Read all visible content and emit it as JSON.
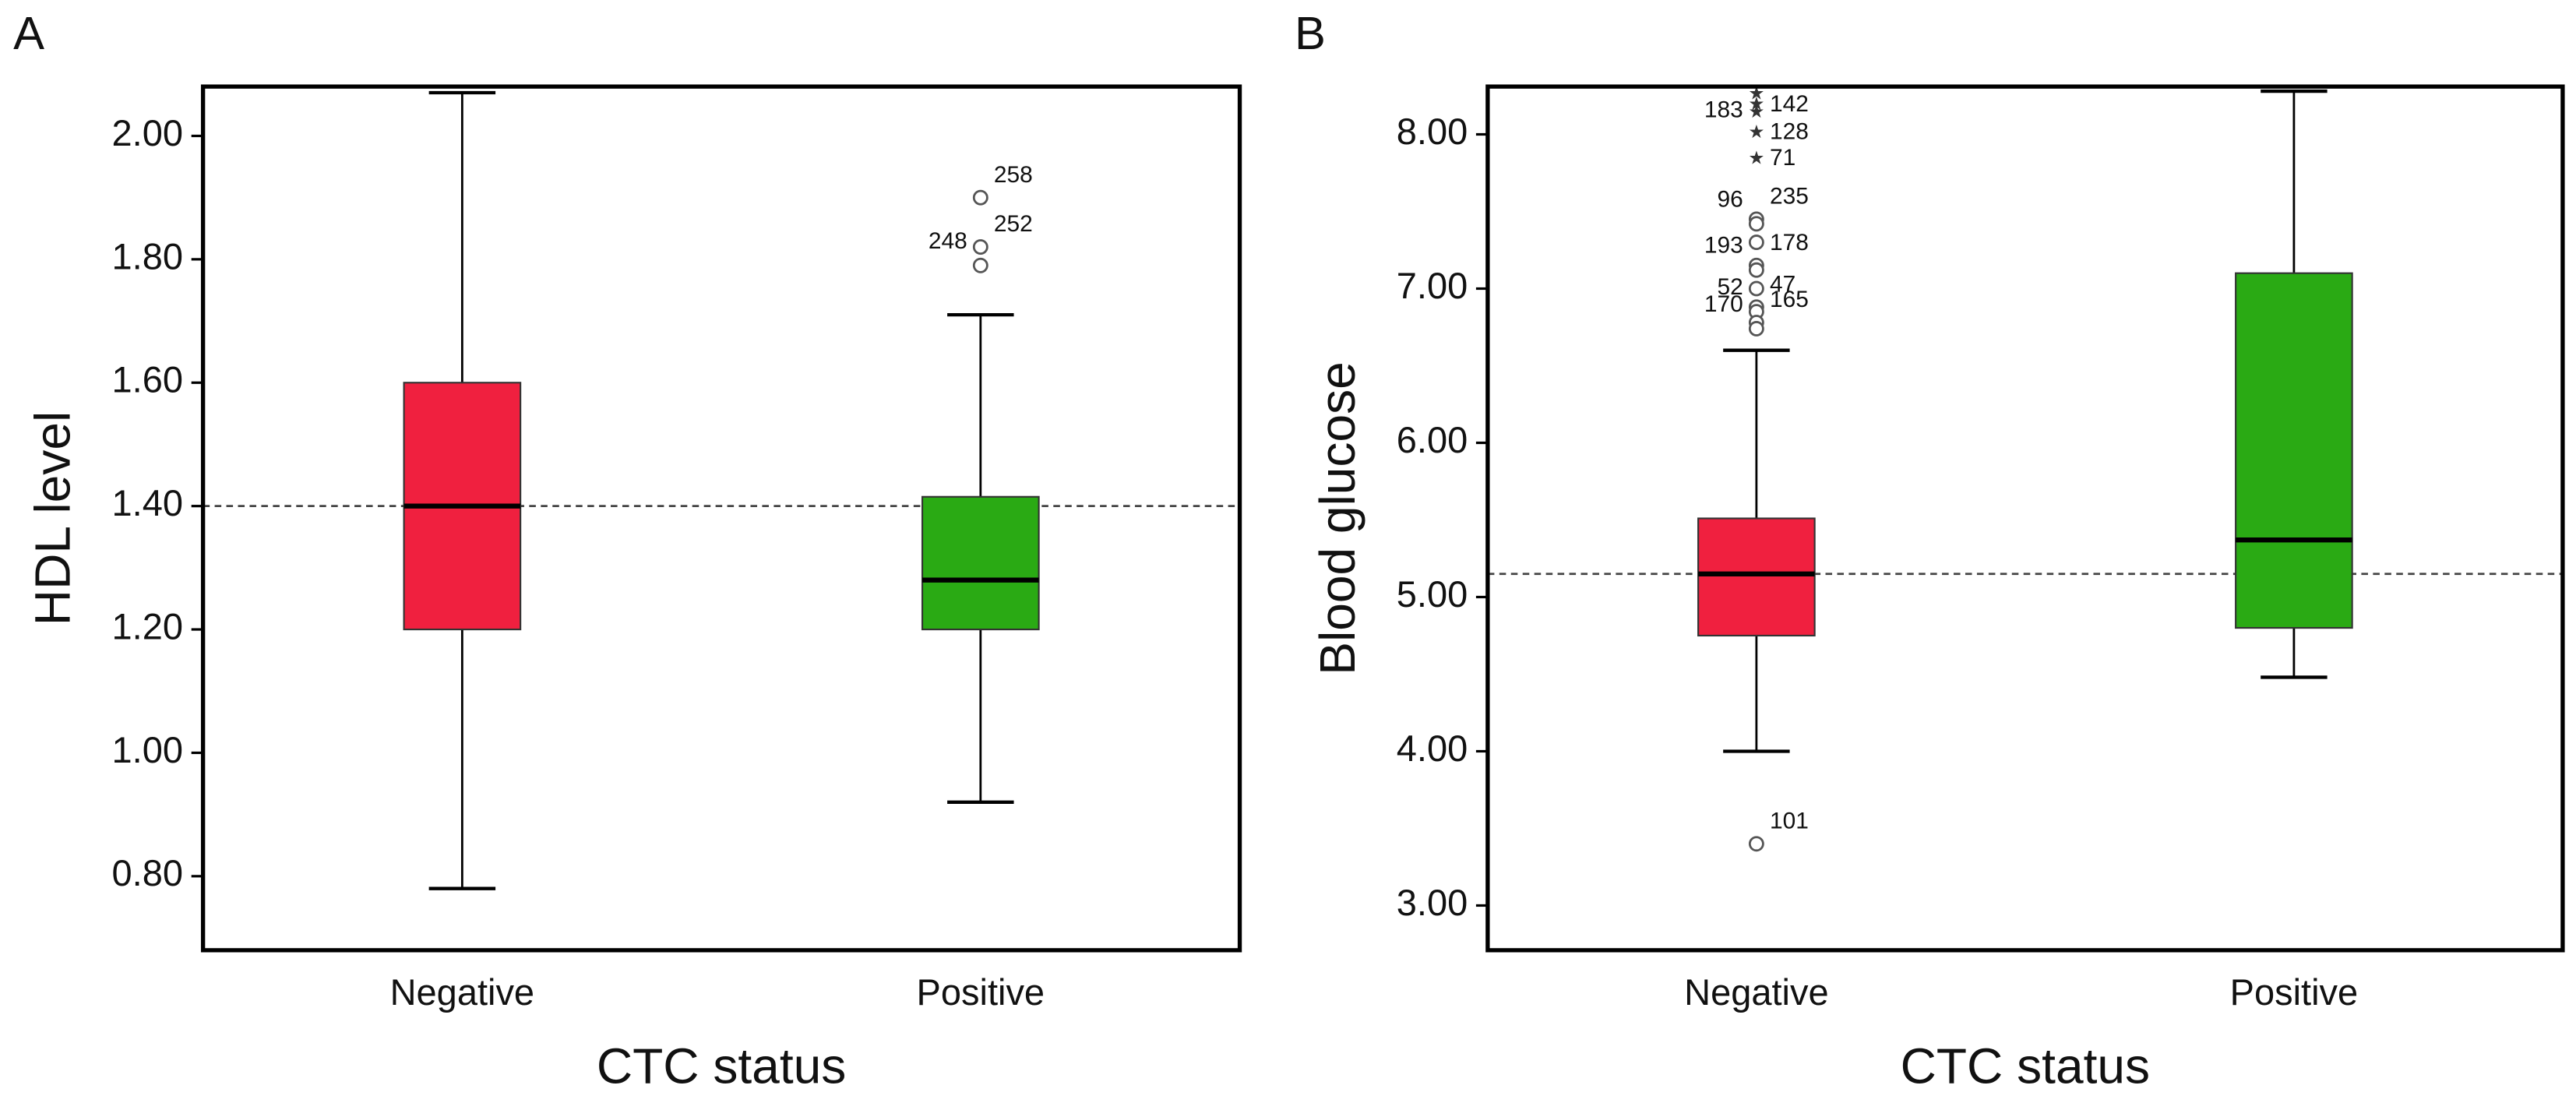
{
  "chart_data": [
    {
      "type": "box",
      "panel": "A",
      "ylabel": "HDL level",
      "xlabel": "CTC status",
      "categories": [
        "Negative",
        "Positive"
      ],
      "ylim": [
        0.68,
        2.08
      ],
      "yticks": [
        {
          "value": 0.8,
          "label": "0.80"
        },
        {
          "value": 1.0,
          "label": "1.00"
        },
        {
          "value": 1.2,
          "label": "1.20"
        },
        {
          "value": 1.4,
          "label": "1.40"
        },
        {
          "value": 1.6,
          "label": "1.60"
        },
        {
          "value": 1.8,
          "label": "1.80"
        },
        {
          "value": 2.0,
          "label": "2.00"
        }
      ],
      "reference_line": 1.4,
      "series": [
        {
          "name": "Negative",
          "color": "#f0203f",
          "min": 0.78,
          "q1": 1.2,
          "median": 1.4,
          "q3": 1.6,
          "max": 2.07,
          "outliers": [],
          "outlier_labels": [],
          "extremes": [],
          "extreme_labels": []
        },
        {
          "name": "Positive",
          "color": "#2aaa14",
          "min": 0.92,
          "q1": 1.2,
          "median": 1.28,
          "q3": 1.415,
          "max": 1.71,
          "outliers": [
            1.9,
            1.82,
            1.79
          ],
          "outlier_labels": [
            "258",
            "252",
            "248"
          ],
          "extremes": [],
          "extreme_labels": []
        }
      ]
    },
    {
      "type": "box",
      "panel": "B",
      "ylabel": "Blood glucose",
      "xlabel": "CTC status",
      "categories": [
        "Negative",
        "Positive"
      ],
      "ylim": [
        2.71,
        8.31
      ],
      "yticks": [
        {
          "value": 3,
          "label": "3.00"
        },
        {
          "value": 4,
          "label": "4.00"
        },
        {
          "value": 5,
          "label": "5.00"
        },
        {
          "value": 6,
          "label": "6.00"
        },
        {
          "value": 7,
          "label": "7.00"
        },
        {
          "value": 8,
          "label": "8.00"
        }
      ],
      "reference_line": 5.15,
      "series": [
        {
          "name": "Negative",
          "color": "#f0203f",
          "min": 4.0,
          "q1": 4.75,
          "median": 5.15,
          "q3": 5.51,
          "max": 6.6,
          "outliers": [
            7.45,
            7.42,
            7.3,
            7.15,
            7.12,
            7.0,
            6.88,
            6.85,
            6.78,
            6.74,
            3.4
          ],
          "outlier_labels": [
            "235",
            "96",
            null,
            "178",
            "193",
            null,
            "47",
            "52",
            "165",
            "170",
            "101"
          ],
          "extremes": [
            8.27,
            8.2,
            8.15,
            8.02,
            7.85
          ],
          "extreme_labels": [
            null,
            "142",
            "183",
            "128",
            "71"
          ]
        },
        {
          "name": "Positive",
          "color": "#2aaa14",
          "min": 4.48,
          "q1": 4.8,
          "median": 5.37,
          "q3": 7.1,
          "max": 8.28,
          "outliers": [],
          "outlier_labels": [],
          "extremes": [],
          "extreme_labels": []
        }
      ]
    }
  ]
}
